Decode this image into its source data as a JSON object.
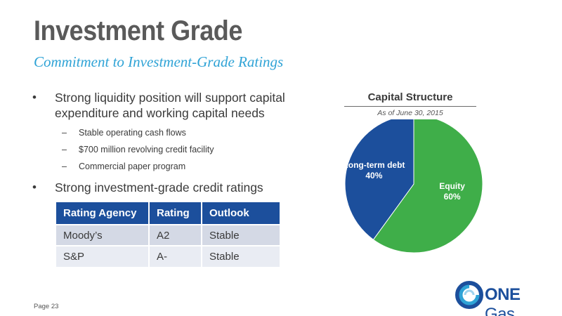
{
  "slide": {
    "title": "Investment Grade",
    "subtitle": "Commitment to Investment-Grade Ratings",
    "page_number": "Page 23"
  },
  "bullets": [
    {
      "marker": "•",
      "text": "Strong liquidity position will support capital expenditure and working capital needs",
      "sub": [
        {
          "marker": "–",
          "text": "Stable operating cash flows"
        },
        {
          "marker": "–",
          "text": "$700 million revolving credit facility"
        },
        {
          "marker": "–",
          "text": "Commercial paper program"
        }
      ]
    },
    {
      "marker": "•",
      "text": "Strong investment-grade credit ratings"
    }
  ],
  "ratings_table": {
    "headers": [
      "Rating Agency",
      "Rating",
      "Outlook"
    ],
    "rows": [
      [
        "Moody’s",
        "A2",
        "Stable"
      ],
      [
        "S&P",
        "A-",
        "Stable"
      ]
    ],
    "header_color": "#1c4f9c"
  },
  "chart_data": {
    "type": "pie",
    "title": "Capital Structure",
    "subtitle": "As of June 30, 2015",
    "slices": [
      {
        "label": "Equity",
        "value": 60,
        "value_label": "60%",
        "color": "#3fae49"
      },
      {
        "label": "Long-term debt",
        "value": 40,
        "value_label": "40%",
        "color": "#1c4f9c"
      }
    ]
  },
  "logo": {
    "text_bold": "ONE",
    "text_light": " Gas",
    "icon": "one-gas-swirl-icon",
    "colors": [
      "#1c4f9c",
      "#2fa3d6"
    ]
  }
}
